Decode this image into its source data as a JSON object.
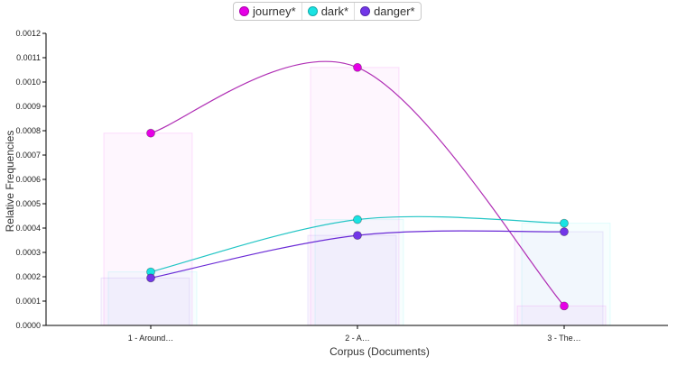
{
  "chart_data": {
    "type": "line",
    "xlabel": "Corpus (Documents)",
    "ylabel": "Relative Frequencies",
    "categories": [
      "1 - Around…",
      "2 - A…",
      "3 - The…"
    ],
    "ylim": [
      0,
      0.0012
    ],
    "yticks": [
      "0.0000",
      "0.0001",
      "0.0002",
      "0.0003",
      "0.0004",
      "0.0005",
      "0.0006",
      "0.0007",
      "0.0008",
      "0.0009",
      "0.0010",
      "0.0011",
      "0.0012"
    ],
    "grid": false,
    "legend_position": "top-center",
    "series": [
      {
        "name": "journey*",
        "color": "#e600e6",
        "line_color": "#b02fb5",
        "values": [
          0.00079,
          0.00106,
          8e-05
        ]
      },
      {
        "name": "dark*",
        "color": "#19e3e3",
        "line_color": "#22c5c5",
        "values": [
          0.00022,
          0.000435,
          0.00042
        ]
      },
      {
        "name": "danger*",
        "color": "#7236e8",
        "line_color": "#6a2ad6",
        "values": [
          0.000195,
          0.00037,
          0.000385
        ]
      }
    ]
  }
}
